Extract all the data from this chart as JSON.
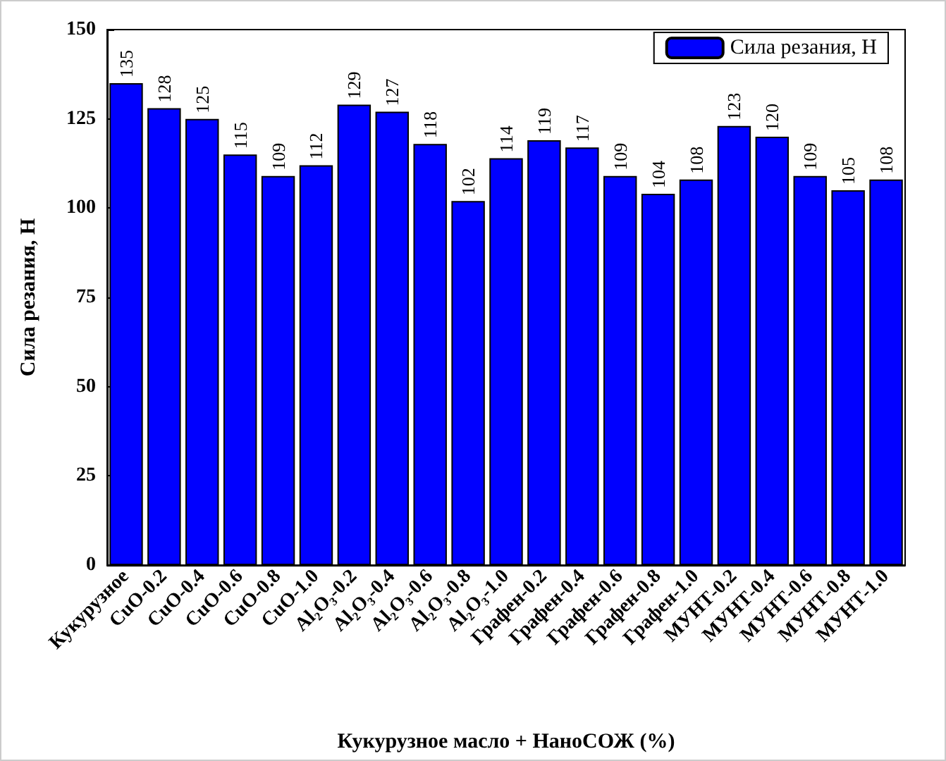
{
  "chart_data": {
    "type": "bar",
    "xlabel": "Кукурузное масло + НаноСОЖ (%)",
    "ylabel": "Сила резания, Н",
    "categories": [
      "Кукурузное",
      "CuO-0.2",
      "CuO-0.4",
      "CuO-0.6",
      "CuO-0.8",
      "CuO-1.0",
      "Al₂O₃-0.2",
      "Al₂O₃-0.4",
      "Al₂O₃-0.6",
      "Al₂O₃-0.8",
      "Al₂O₃-1.0",
      "Графен-0.2",
      "Графен-0.4",
      "Графен-0.6",
      "Графен-0.8",
      "Графен-1.0",
      "МУНТ-0.2",
      "МУНТ-0.4",
      "МУНТ-0.6",
      "МУНТ-0.8",
      "МУНТ-1.0"
    ],
    "series": [
      {
        "name": "Сила резания, Н",
        "color": "#0000ff",
        "values": [
          135,
          128,
          125,
          115,
          109,
          112,
          129,
          127,
          118,
          102,
          114,
          119,
          117,
          109,
          104,
          108,
          123,
          120,
          109,
          105,
          108
        ]
      }
    ],
    "ylim": [
      0,
      150
    ],
    "yticks": [
      0,
      25,
      50,
      75,
      100,
      125,
      150
    ],
    "data_labels": true,
    "legend": "top right",
    "grid": false
  }
}
